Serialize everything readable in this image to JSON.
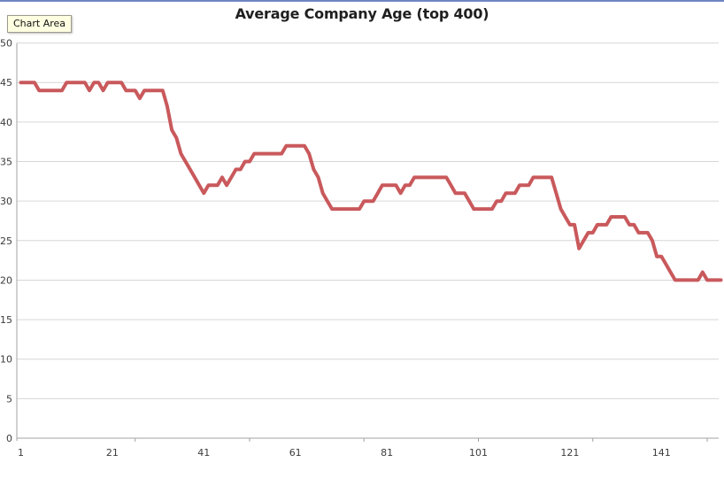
{
  "tooltip": {
    "label": "Chart Area"
  },
  "colors": {
    "top_bar": "#6e87c4",
    "tooltip_bg": "#ffffe1",
    "background": "#ffffff"
  },
  "chart_data": {
    "type": "line",
    "title": "Average Company Age (top 400)",
    "xlabel": "",
    "ylabel": "",
    "legend": "none",
    "grid": "horizontal",
    "ylim": [
      0,
      50
    ],
    "ytick_interval": 5,
    "yticklabels": [
      "0",
      "5",
      "10",
      "15",
      "20",
      "25",
      "30",
      "35",
      "40",
      "45",
      "50"
    ],
    "xticklabels": [
      "1",
      "21",
      "41",
      "61",
      "81",
      "101",
      "121",
      "141"
    ],
    "xlabel_positions": [
      1,
      21,
      41,
      61,
      81,
      101,
      121,
      141
    ],
    "xtickmark_positions": [
      26,
      51,
      76,
      101,
      126,
      151
    ],
    "x_start": 1,
    "series_name": "Average Company Age",
    "series_color": "#c9595c",
    "gridline_color": "#d6d6d6",
    "axis_color": "#a3a3a3",
    "label_color": "#3b3b3b",
    "values": [
      45,
      45,
      45,
      45,
      44,
      44,
      44,
      44,
      44,
      44,
      45,
      45,
      45,
      45,
      45,
      44,
      45,
      45,
      44,
      45,
      45,
      45,
      45,
      44,
      44,
      44,
      43,
      44,
      44,
      44,
      44,
      44,
      42,
      39,
      38,
      36,
      35,
      34,
      33,
      32,
      31,
      32,
      32,
      32,
      33,
      32,
      33,
      34,
      34,
      35,
      35,
      36,
      36,
      36,
      36,
      36,
      36,
      36,
      37,
      37,
      37,
      37,
      37,
      36,
      34,
      33,
      31,
      30,
      29,
      29,
      29,
      29,
      29,
      29,
      29,
      30,
      30,
      30,
      31,
      32,
      32,
      32,
      32,
      31,
      32,
      32,
      33,
      33,
      33,
      33,
      33,
      33,
      33,
      33,
      32,
      31,
      31,
      31,
      30,
      29,
      29,
      29,
      29,
      29,
      30,
      30,
      31,
      31,
      31,
      32,
      32,
      32,
      33,
      33,
      33,
      33,
      33,
      31,
      29,
      28,
      27,
      27,
      24,
      25,
      26,
      26,
      27,
      27,
      27,
      28,
      28,
      28,
      28,
      27,
      27,
      26,
      26,
      26,
      25,
      23,
      23,
      22,
      21,
      20,
      20,
      20,
      20,
      20,
      20,
      21,
      20,
      20,
      20,
      20
    ]
  }
}
